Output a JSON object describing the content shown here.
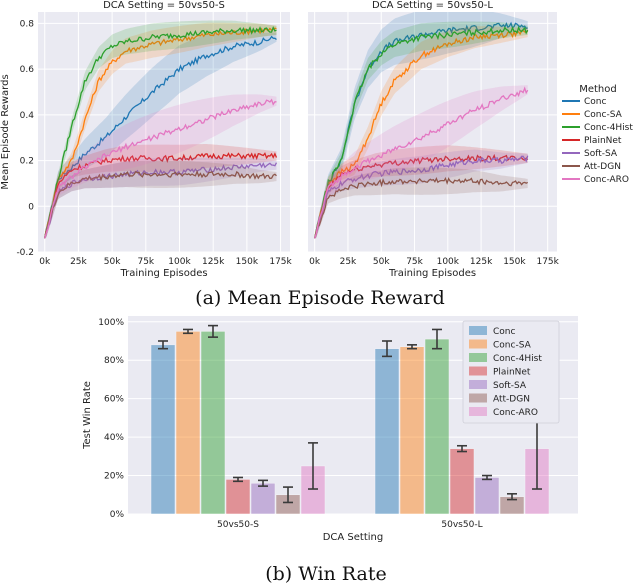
{
  "colors": {
    "Conc": "#1f77b4",
    "Conc-SA": "#ff7f0e",
    "Conc-4Hist": "#2ca02c",
    "PlainNet": "#d62728",
    "Soft-SA": "#9467bd",
    "Att-DGN": "#8c564b",
    "Conc-ARO": "#e377c2",
    "panel_bg": "#eaeaf2",
    "grid": "#ffffff"
  },
  "captions": {
    "a": "(a) Mean Episode Reward",
    "b": "(b) Win Rate"
  },
  "chart_data": [
    {
      "type": "line",
      "title": "DCA Setting = 50vs50-S",
      "xlabel": "Training Episodes",
      "ylabel": "Mean Episode Rewards",
      "xlim": [
        -5000,
        182000
      ],
      "ylim": [
        -0.2,
        0.85
      ],
      "xticks": [
        0,
        25000,
        50000,
        75000,
        100000,
        125000,
        150000,
        175000
      ],
      "xtick_labels": [
        "0k",
        "25k",
        "50k",
        "75k",
        "100k",
        "125k",
        "150k",
        "175k"
      ],
      "yticks": [
        -0.2,
        0.0,
        0.2,
        0.4,
        0.6,
        0.8
      ],
      "ytick_labels": [
        "-0.2",
        "0",
        "0.2",
        "0.4",
        "0.6",
        "0.8"
      ],
      "grid": true,
      "series": [
        {
          "name": "Conc",
          "x": [
            0,
            10000,
            20000,
            30000,
            45000,
            60000,
            80000,
            100000,
            120000,
            140000,
            160000,
            172000
          ],
          "values": [
            -0.14,
            0.12,
            0.17,
            0.23,
            0.3,
            0.39,
            0.5,
            0.6,
            0.66,
            0.7,
            0.72,
            0.74
          ]
        },
        {
          "name": "Conc-SA",
          "x": [
            0,
            10000,
            20000,
            30000,
            40000,
            50000,
            60000,
            80000,
            100000,
            120000,
            140000,
            160000,
            172000
          ],
          "values": [
            -0.14,
            0.12,
            0.2,
            0.38,
            0.55,
            0.63,
            0.68,
            0.71,
            0.73,
            0.75,
            0.76,
            0.77,
            0.77
          ]
        },
        {
          "name": "Conc-4Hist",
          "x": [
            0,
            10000,
            20000,
            30000,
            40000,
            50000,
            60000,
            80000,
            100000,
            120000,
            140000,
            160000,
            172000
          ],
          "values": [
            -0.14,
            0.12,
            0.35,
            0.55,
            0.65,
            0.7,
            0.72,
            0.74,
            0.75,
            0.76,
            0.77,
            0.77,
            0.77
          ]
        },
        {
          "name": "PlainNet",
          "x": [
            0,
            10000,
            20000,
            30000,
            45000,
            60000,
            80000,
            100000,
            120000,
            140000,
            160000,
            172000
          ],
          "values": [
            -0.14,
            0.1,
            0.16,
            0.18,
            0.2,
            0.21,
            0.21,
            0.21,
            0.22,
            0.22,
            0.22,
            0.22
          ]
        },
        {
          "name": "Soft-SA",
          "x": [
            0,
            10000,
            20000,
            30000,
            45000,
            60000,
            80000,
            100000,
            120000,
            140000,
            160000,
            172000
          ],
          "values": [
            -0.14,
            0.06,
            0.1,
            0.12,
            0.13,
            0.14,
            0.15,
            0.15,
            0.16,
            0.17,
            0.18,
            0.18
          ]
        },
        {
          "name": "Att-DGN",
          "x": [
            0,
            10000,
            20000,
            30000,
            45000,
            60000,
            80000,
            100000,
            120000,
            140000,
            160000,
            172000
          ],
          "values": [
            -0.14,
            0.06,
            0.1,
            0.12,
            0.13,
            0.14,
            0.14,
            0.14,
            0.14,
            0.14,
            0.13,
            0.13
          ]
        },
        {
          "name": "Conc-ARO",
          "x": [
            0,
            10000,
            20000,
            30000,
            45000,
            60000,
            80000,
            100000,
            120000,
            140000,
            160000,
            172000
          ],
          "values": [
            -0.14,
            0.08,
            0.13,
            0.17,
            0.22,
            0.26,
            0.3,
            0.34,
            0.38,
            0.42,
            0.45,
            0.46
          ]
        }
      ]
    },
    {
      "type": "line",
      "title": "DCA Setting = 50vs50-L",
      "xlabel": "Training Episodes",
      "ylabel": "",
      "xlim": [
        -5000,
        182000
      ],
      "ylim": [
        -0.2,
        0.85
      ],
      "xticks": [
        0,
        25000,
        50000,
        75000,
        100000,
        125000,
        150000,
        175000
      ],
      "xtick_labels": [
        "0k",
        "25k",
        "50k",
        "75k",
        "100k",
        "125k",
        "150k",
        "175k"
      ],
      "yticks": [
        -0.2,
        0.0,
        0.2,
        0.4,
        0.6,
        0.8
      ],
      "grid": true,
      "series": [
        {
          "name": "Conc",
          "x": [
            0,
            10000,
            20000,
            30000,
            40000,
            50000,
            60000,
            80000,
            100000,
            120000,
            140000,
            160000
          ],
          "values": [
            -0.14,
            0.1,
            0.2,
            0.45,
            0.6,
            0.68,
            0.72,
            0.75,
            0.77,
            0.78,
            0.79,
            0.79
          ]
        },
        {
          "name": "Conc-SA",
          "x": [
            0,
            10000,
            20000,
            30000,
            40000,
            50000,
            60000,
            80000,
            100000,
            120000,
            140000,
            160000
          ],
          "values": [
            -0.14,
            0.1,
            0.15,
            0.18,
            0.3,
            0.45,
            0.55,
            0.66,
            0.71,
            0.74,
            0.75,
            0.76
          ]
        },
        {
          "name": "Conc-4Hist",
          "x": [
            0,
            10000,
            20000,
            30000,
            40000,
            50000,
            60000,
            80000,
            100000,
            120000,
            140000,
            160000
          ],
          "values": [
            -0.14,
            0.1,
            0.2,
            0.45,
            0.6,
            0.67,
            0.71,
            0.74,
            0.75,
            0.76,
            0.77,
            0.77
          ]
        },
        {
          "name": "PlainNet",
          "x": [
            0,
            10000,
            20000,
            30000,
            45000,
            60000,
            80000,
            100000,
            120000,
            140000,
            160000
          ],
          "values": [
            -0.14,
            0.08,
            0.14,
            0.16,
            0.18,
            0.19,
            0.2,
            0.21,
            0.21,
            0.21,
            0.21
          ]
        },
        {
          "name": "Soft-SA",
          "x": [
            0,
            10000,
            20000,
            30000,
            45000,
            60000,
            80000,
            100000,
            120000,
            140000,
            160000
          ],
          "values": [
            -0.14,
            0.06,
            0.1,
            0.12,
            0.14,
            0.15,
            0.16,
            0.18,
            0.2,
            0.2,
            0.21
          ]
        },
        {
          "name": "Att-DGN",
          "x": [
            0,
            10000,
            20000,
            30000,
            45000,
            60000,
            80000,
            100000,
            120000,
            140000,
            160000
          ],
          "values": [
            -0.14,
            0.04,
            0.07,
            0.09,
            0.1,
            0.11,
            0.11,
            0.11,
            0.11,
            0.1,
            0.1
          ]
        },
        {
          "name": "Conc-ARO",
          "x": [
            0,
            10000,
            20000,
            30000,
            45000,
            60000,
            80000,
            100000,
            120000,
            140000,
            160000
          ],
          "values": [
            -0.14,
            0.08,
            0.13,
            0.17,
            0.21,
            0.25,
            0.3,
            0.36,
            0.42,
            0.47,
            0.51
          ]
        }
      ],
      "legend": {
        "title": "Method",
        "placement": "right-outside",
        "entries": [
          "Conc",
          "Conc-SA",
          "Conc-4Hist",
          "PlainNet",
          "Soft-SA",
          "Att-DGN",
          "Conc-ARO"
        ]
      }
    },
    {
      "type": "bar",
      "title": "",
      "xlabel": "DCA Setting",
      "ylabel": "Test Win Rate",
      "categories": [
        "50vs50-S",
        "50vs50-L"
      ],
      "ylim": [
        0,
        1.03
      ],
      "yticks": [
        0,
        0.2,
        0.4,
        0.6,
        0.8,
        1.0
      ],
      "ytick_labels": [
        "0%",
        "20%",
        "40%",
        "60%",
        "80%",
        "100%"
      ],
      "series": [
        {
          "name": "Conc",
          "values": [
            0.88,
            0.86
          ],
          "err": [
            0.02,
            0.04
          ]
        },
        {
          "name": "Conc-SA",
          "values": [
            0.95,
            0.87
          ],
          "err": [
            0.01,
            0.01
          ]
        },
        {
          "name": "Conc-4Hist",
          "values": [
            0.95,
            0.91
          ],
          "err": [
            0.03,
            0.05
          ]
        },
        {
          "name": "PlainNet",
          "values": [
            0.18,
            0.34
          ],
          "err": [
            0.01,
            0.015
          ]
        },
        {
          "name": "Soft-SA",
          "values": [
            0.16,
            0.19
          ],
          "err": [
            0.015,
            0.01
          ]
        },
        {
          "name": "Att-DGN",
          "values": [
            0.1,
            0.09
          ],
          "err": [
            0.04,
            0.015
          ]
        },
        {
          "name": "Conc-ARO",
          "values": [
            0.25,
            0.34
          ],
          "err": [
            0.12,
            0.21
          ]
        }
      ],
      "legend": {
        "placement": "top-right"
      }
    }
  ]
}
